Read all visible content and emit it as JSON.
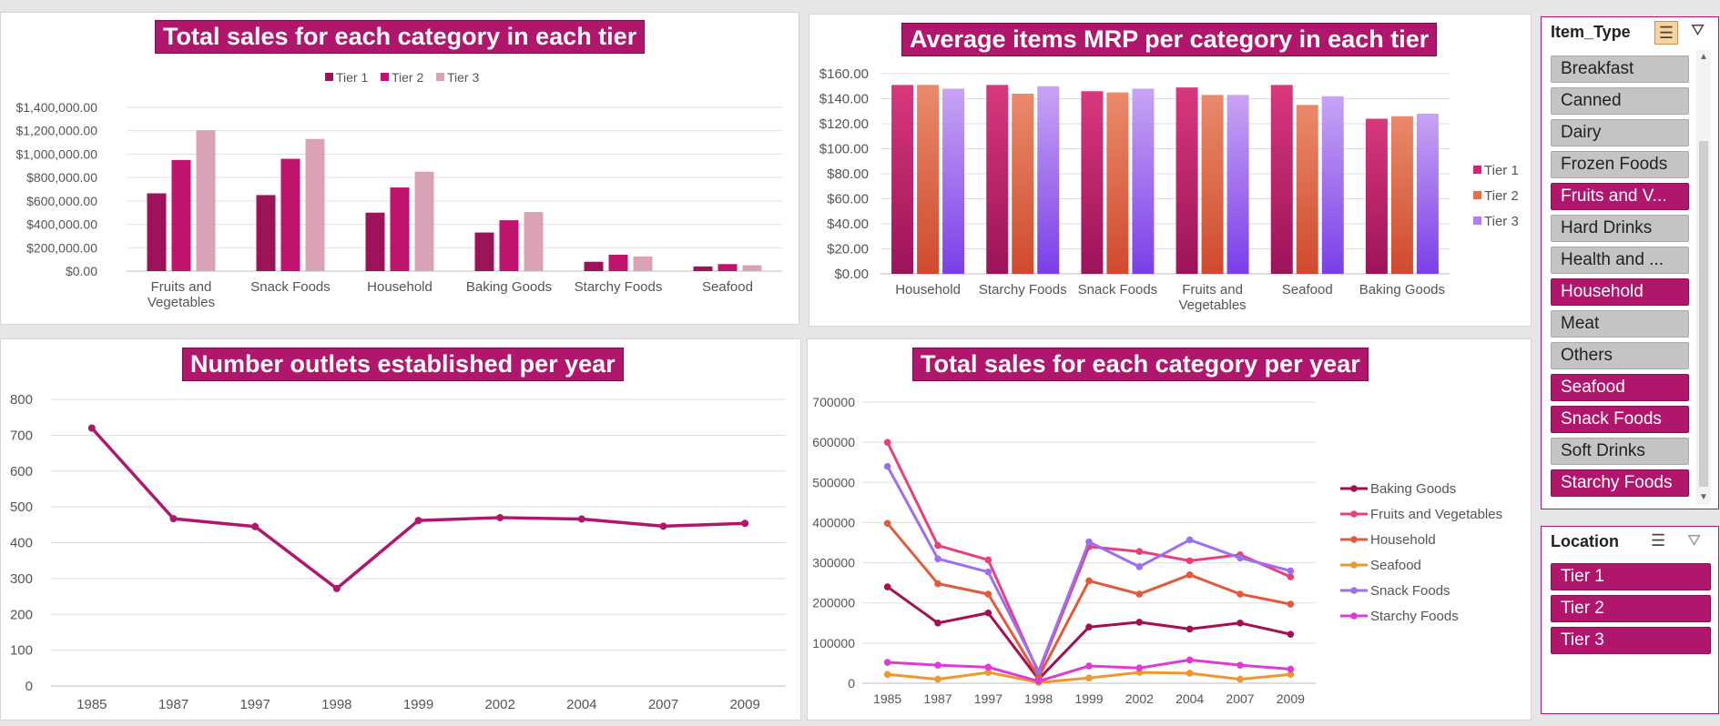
{
  "colors": {
    "accent": "#b0166b",
    "tier1_sales": "#9c1359",
    "tier2_sales": "#c0136e",
    "tier3_sales": "#d9a3b5",
    "tier1_mrp": "#c92a72",
    "tier2_mrp": "#e0714f",
    "tier3_mrp": "#b07ef0",
    "outlets_line": "#b0166b",
    "baking": "#a3104f",
    "fruits": "#e8407a",
    "household": "#e25a3a",
    "seafood": "#f0962e",
    "snack": "#9b6ff0",
    "starchy": "#de3bd6"
  },
  "chart_data": [
    {
      "type": "bar",
      "title": "Total sales for each category in each tier",
      "categories": [
        "Fruits and Vegetables",
        "Snack Foods",
        "Household",
        "Baking Goods",
        "Starchy Foods",
        "Seafood"
      ],
      "category_lines": [
        [
          "Fruits and",
          "Vegetables"
        ],
        [
          "Snack Foods"
        ],
        [
          "Household"
        ],
        [
          "Baking Goods"
        ],
        [
          "Starchy Foods"
        ],
        [
          "Seafood"
        ]
      ],
      "series": [
        {
          "name": "Tier 1",
          "values": [
            665000,
            650000,
            500000,
            330000,
            80000,
            40000
          ]
        },
        {
          "name": "Tier 2",
          "values": [
            950000,
            960000,
            715000,
            435000,
            140000,
            60000
          ]
        },
        {
          "name": "Tier 3",
          "values": [
            1205000,
            1130000,
            850000,
            505000,
            125000,
            50000
          ]
        }
      ],
      "ylim": [
        0,
        1400000
      ],
      "yticks": [
        "$0.00",
        "$200,000.00",
        "$400,000.00",
        "$600,000.00",
        "$800,000.00",
        "$1,000,000.00",
        "$1,200,000.00",
        "$1,400,000.00"
      ],
      "legend": "top"
    },
    {
      "type": "bar",
      "title": "Average items MRP per category in each tier",
      "categories": [
        "Household",
        "Starchy Foods",
        "Snack Foods",
        "Fruits and Vegetables",
        "Seafood",
        "Baking Goods"
      ],
      "category_lines": [
        [
          "Household"
        ],
        [
          "Starchy Foods"
        ],
        [
          "Snack Foods"
        ],
        [
          "Fruits and",
          "Vegetables"
        ],
        [
          "Seafood"
        ],
        [
          "Baking Goods"
        ]
      ],
      "series": [
        {
          "name": "Tier 1",
          "values": [
            151,
            151,
            146,
            149,
            151,
            124
          ]
        },
        {
          "name": "Tier 2",
          "values": [
            151,
            144,
            145,
            143,
            135,
            126
          ]
        },
        {
          "name": "Tier 3",
          "values": [
            148,
            150,
            148,
            143,
            142,
            128
          ]
        }
      ],
      "ylim": [
        0,
        160
      ],
      "yticks": [
        "$0.00",
        "$20.00",
        "$40.00",
        "$60.00",
        "$80.00",
        "$100.00",
        "$120.00",
        "$140.00",
        "$160.00"
      ],
      "legend": "right"
    },
    {
      "type": "line",
      "title": "Number outlets established per year",
      "x": [
        "1985",
        "1987",
        "1997",
        "1998",
        "1999",
        "2002",
        "2004",
        "2007",
        "2009"
      ],
      "values": [
        720,
        467,
        445,
        272,
        462,
        470,
        466,
        446,
        454
      ],
      "ylim": [
        0,
        800
      ],
      "yticks": [
        "0",
        "100",
        "200",
        "300",
        "400",
        "500",
        "600",
        "700",
        "800"
      ]
    },
    {
      "type": "line",
      "title": "Total sales for each category per year",
      "x": [
        "1985",
        "1987",
        "1997",
        "1998",
        "1999",
        "2002",
        "2004",
        "2007",
        "2009"
      ],
      "series": [
        {
          "name": "Baking Goods",
          "values": [
            240000,
            150000,
            175000,
            10000,
            140000,
            152000,
            135000,
            150000,
            122000
          ]
        },
        {
          "name": "Fruits and Vegetables",
          "values": [
            600000,
            343000,
            307000,
            25000,
            340000,
            328000,
            305000,
            320000,
            265000
          ]
        },
        {
          "name": "Household",
          "values": [
            398000,
            248000,
            222000,
            15000,
            255000,
            222000,
            270000,
            222000,
            197000
          ]
        },
        {
          "name": "Seafood",
          "values": [
            22000,
            10000,
            27000,
            2000,
            13000,
            27000,
            25000,
            10000,
            22000
          ]
        },
        {
          "name": "Snack Foods",
          "values": [
            540000,
            310000,
            277000,
            30000,
            352000,
            290000,
            357000,
            312000,
            280000
          ]
        },
        {
          "name": "Starchy Foods",
          "values": [
            52000,
            45000,
            40000,
            5000,
            43000,
            38000,
            58000,
            45000,
            35000
          ]
        }
      ],
      "ylim": [
        0,
        700000
      ],
      "yticks": [
        "0",
        "100000",
        "200000",
        "300000",
        "400000",
        "500000",
        "600000",
        "700000"
      ],
      "legend": "right"
    }
  ],
  "slicers": {
    "item_type": {
      "title": "Item_Type",
      "items": [
        {
          "label": "Breakfast",
          "selected": false
        },
        {
          "label": "Canned",
          "selected": false
        },
        {
          "label": "Dairy",
          "selected": false
        },
        {
          "label": "Frozen Foods",
          "selected": false
        },
        {
          "label": "Fruits and V...",
          "selected": true
        },
        {
          "label": "Hard Drinks",
          "selected": false
        },
        {
          "label": "Health and ...",
          "selected": false
        },
        {
          "label": "Household",
          "selected": true
        },
        {
          "label": "Meat",
          "selected": false
        },
        {
          "label": "Others",
          "selected": false
        },
        {
          "label": "Seafood",
          "selected": true
        },
        {
          "label": "Snack Foods",
          "selected": true
        },
        {
          "label": "Soft Drinks",
          "selected": false
        },
        {
          "label": "Starchy Foods",
          "selected": true
        }
      ]
    },
    "location": {
      "title": "Location",
      "items": [
        {
          "label": "Tier 1",
          "selected": true
        },
        {
          "label": "Tier 2",
          "selected": true
        },
        {
          "label": "Tier 3",
          "selected": true
        }
      ]
    }
  }
}
